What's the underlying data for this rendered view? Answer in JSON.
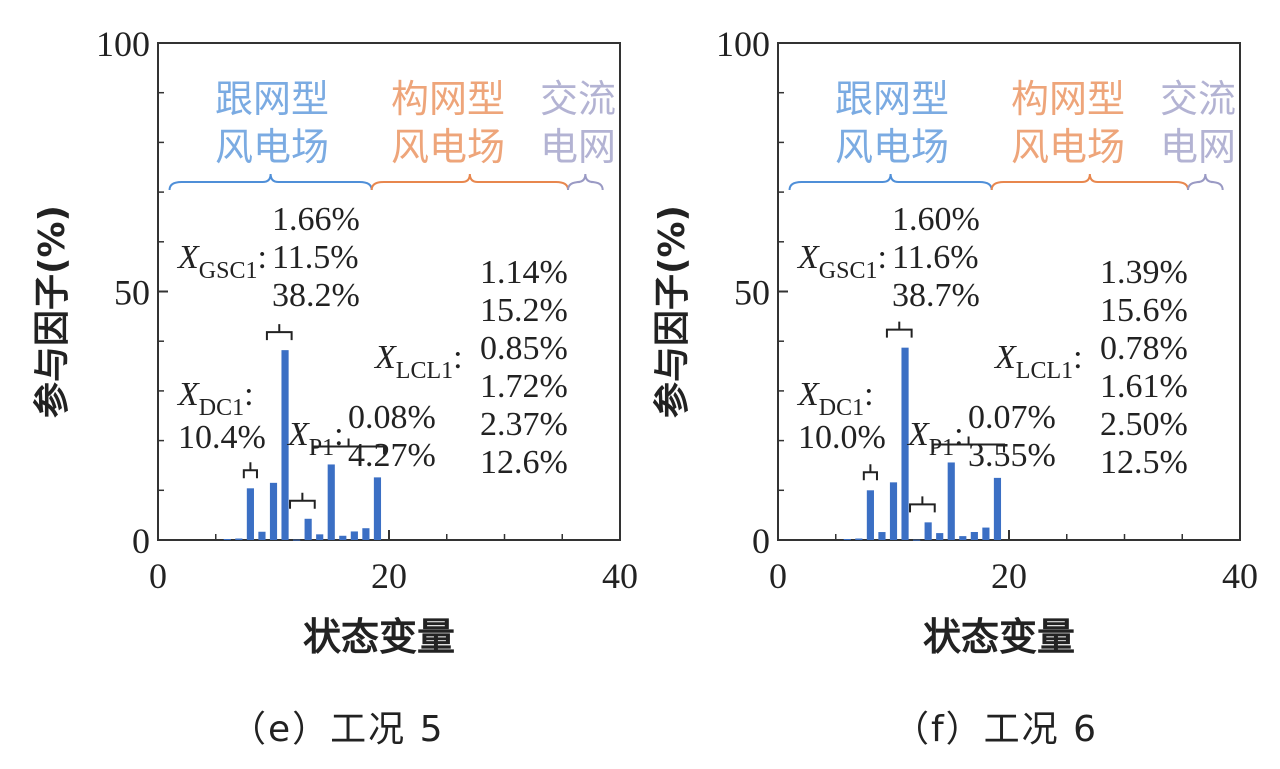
{
  "chart_data": [
    {
      "type": "bar",
      "caption": "（e）工况 5",
      "xlabel": "状态变量",
      "ylabel": "参与因子(%)",
      "xlim": [
        0,
        40
      ],
      "ylim": [
        0,
        100
      ],
      "xticks": [
        "0",
        "20",
        "40"
      ],
      "yticks": [
        "0",
        "50",
        "100"
      ],
      "bar_color": "#3b6fc4",
      "regions": [
        {
          "label": [
            "跟网型",
            "风电场"
          ],
          "color": "#4f8fd8",
          "x_range": [
            1,
            18.5
          ]
        },
        {
          "label": [
            "构网型",
            "风电场"
          ],
          "color": "#e8874e",
          "x_range": [
            18.5,
            35.5
          ]
        },
        {
          "label": [
            "交流",
            "电网"
          ],
          "color": "#9a9ac4",
          "x_range": [
            35.5,
            38.5
          ]
        }
      ],
      "bars": [
        {
          "x": 6,
          "y": 0.2
        },
        {
          "x": 7,
          "y": 0.3
        },
        {
          "x": 8,
          "y": 10.4
        },
        {
          "x": 9,
          "y": 1.66
        },
        {
          "x": 10,
          "y": 11.5
        },
        {
          "x": 11,
          "y": 38.2
        },
        {
          "x": 12,
          "y": 0.08
        },
        {
          "x": 13,
          "y": 4.27
        },
        {
          "x": 14,
          "y": 1.14
        },
        {
          "x": 15,
          "y": 15.2
        },
        {
          "x": 16,
          "y": 0.85
        },
        {
          "x": 17,
          "y": 1.72
        },
        {
          "x": 18,
          "y": 2.37
        },
        {
          "x": 19,
          "y": 12.6
        }
      ],
      "annotations": [
        {
          "var": "X",
          "sub": "DC1",
          "values": [
            "10.4%"
          ],
          "bracket": [
            8,
            8
          ]
        },
        {
          "var": "X",
          "sub": "GSC1",
          "values": [
            "1.66%",
            "11.5%",
            "38.2%"
          ],
          "bracket": [
            10,
            11
          ]
        },
        {
          "var": "X",
          "sub": "P1",
          "values": [
            "0.08%",
            "4.27%"
          ],
          "bracket": [
            12,
            13
          ]
        },
        {
          "var": "X",
          "sub": "LCL1",
          "values": [
            "1.14%",
            "15.2%",
            "0.85%",
            "1.72%",
            "2.37%",
            "12.6%"
          ],
          "bracket": [
            14,
            19
          ]
        }
      ]
    },
    {
      "type": "bar",
      "caption": "（f）工况 6",
      "xlabel": "状态变量",
      "ylabel": "参与因子(%)",
      "xlim": [
        0,
        40
      ],
      "ylim": [
        0,
        100
      ],
      "xticks": [
        "0",
        "20",
        "40"
      ],
      "yticks": [
        "0",
        "50",
        "100"
      ],
      "bar_color": "#3b6fc4",
      "regions": [
        {
          "label": [
            "跟网型",
            "风电场"
          ],
          "color": "#4f8fd8",
          "x_range": [
            1,
            18.5
          ]
        },
        {
          "label": [
            "构网型",
            "风电场"
          ],
          "color": "#e8874e",
          "x_range": [
            18.5,
            35.5
          ]
        },
        {
          "label": [
            "交流",
            "电网"
          ],
          "color": "#9a9ac4",
          "x_range": [
            35.5,
            38.5
          ]
        }
      ],
      "bars": [
        {
          "x": 6,
          "y": 0.2
        },
        {
          "x": 7,
          "y": 0.3
        },
        {
          "x": 8,
          "y": 10.0
        },
        {
          "x": 9,
          "y": 1.6
        },
        {
          "x": 10,
          "y": 11.6
        },
        {
          "x": 11,
          "y": 38.7
        },
        {
          "x": 12,
          "y": 0.07
        },
        {
          "x": 13,
          "y": 3.55
        },
        {
          "x": 14,
          "y": 1.39
        },
        {
          "x": 15,
          "y": 15.6
        },
        {
          "x": 16,
          "y": 0.78
        },
        {
          "x": 17,
          "y": 1.61
        },
        {
          "x": 18,
          "y": 2.5
        },
        {
          "x": 19,
          "y": 12.5
        }
      ],
      "annotations": [
        {
          "var": "X",
          "sub": "DC1",
          "values": [
            "10.0%"
          ],
          "bracket": [
            8,
            8
          ]
        },
        {
          "var": "X",
          "sub": "GSC1",
          "values": [
            "1.60%",
            "11.6%",
            "38.7%"
          ],
          "bracket": [
            10,
            11
          ]
        },
        {
          "var": "X",
          "sub": "P1",
          "values": [
            "0.07%",
            "3.55%"
          ],
          "bracket": [
            12,
            13
          ]
        },
        {
          "var": "X",
          "sub": "LCL1",
          "values": [
            "1.39%",
            "15.6%",
            "0.78%",
            "1.61%",
            "2.50%",
            "12.5%"
          ],
          "bracket": [
            14,
            19
          ]
        }
      ]
    }
  ]
}
